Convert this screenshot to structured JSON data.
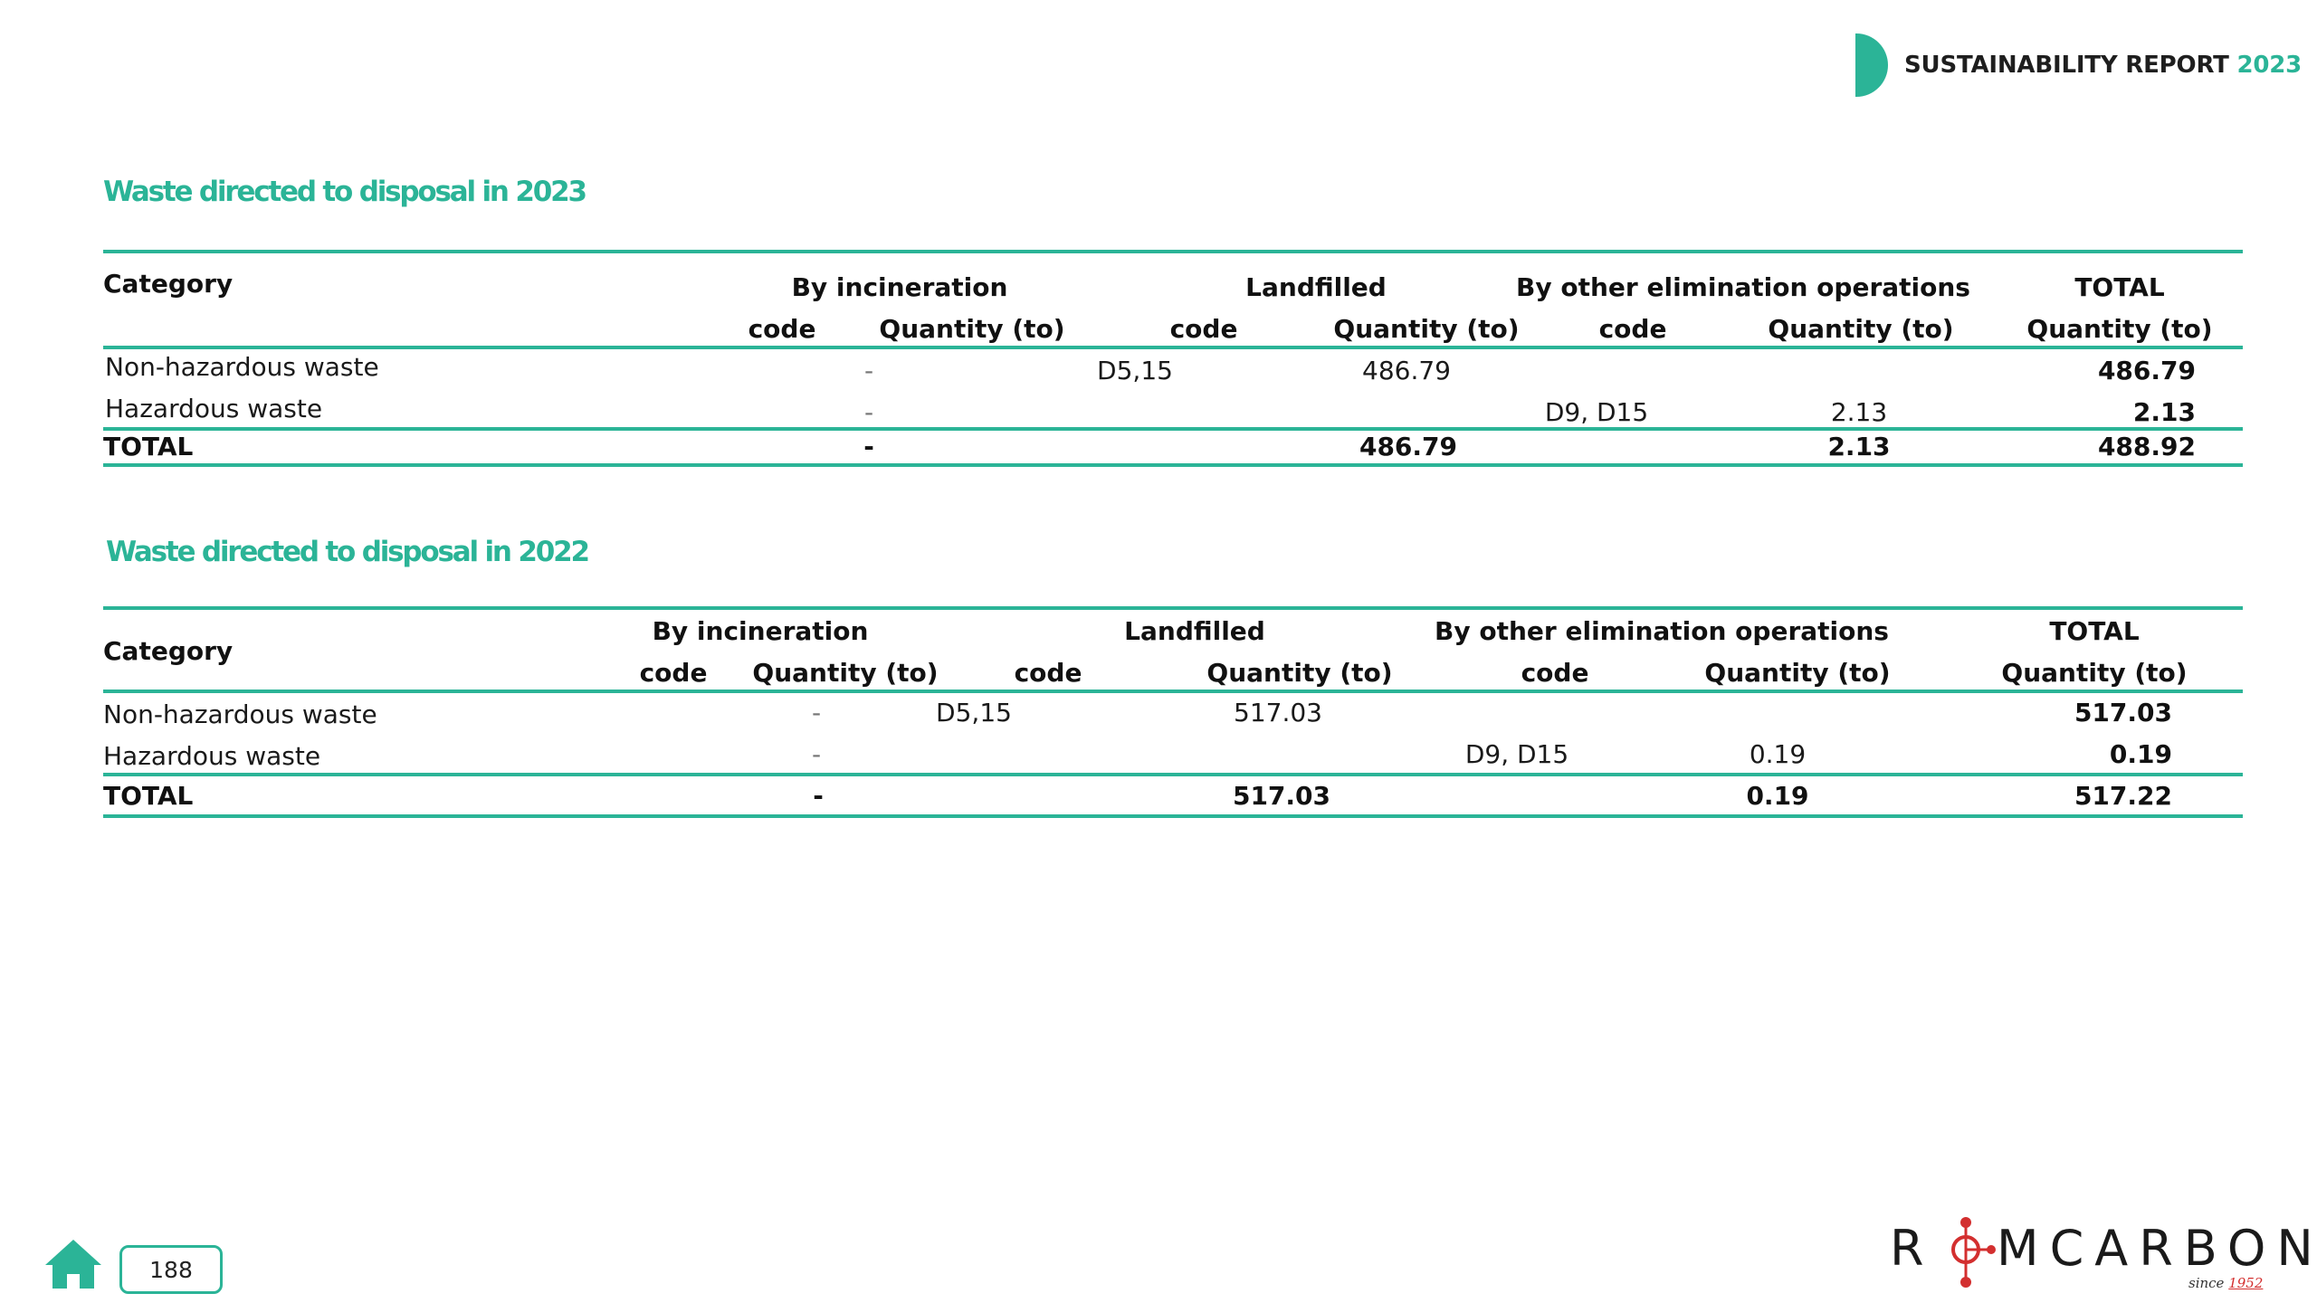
{
  "header": {
    "report_label": "SUSTAINABILITY REPORT",
    "report_year": "2023",
    "accent_color": "#2bb497"
  },
  "sections": [
    {
      "title": "Waste directed to disposal  in 2023",
      "table": {
        "col_category": "Category",
        "group_incineration": "By incineration",
        "group_landfilled": "Landfilled",
        "group_other": "By other elimination operations",
        "group_total": "TOTAL",
        "sub_code": "code",
        "sub_quantity": "Quantity (to)",
        "rows": [
          {
            "category": "Non-hazardous waste",
            "inc_qty": "-",
            "land_code": "D5,15",
            "land_qty": "486.79",
            "other_code": "",
            "other_qty": "",
            "total": "486.79"
          },
          {
            "category": "Hazardous waste",
            "inc_qty": "-",
            "land_code": "",
            "land_qty": "",
            "other_code": "D9, D15",
            "other_qty": "2.13",
            "total": "2.13"
          }
        ],
        "total_row": {
          "label": "TOTAL",
          "inc_qty": "-",
          "land_qty": "486.79",
          "other_qty": "2.13",
          "total": "488.92"
        }
      }
    },
    {
      "title": "Waste directed to disposal  in 2022",
      "table": {
        "col_category": "Category",
        "group_incineration": "By incineration",
        "group_landfilled": "Landfilled",
        "group_other": "By other elimination operations",
        "group_total": "TOTAL",
        "sub_code": "code",
        "sub_quantity": "Quantity (to)",
        "rows": [
          {
            "category": "Non-hazardous waste",
            "inc_qty": "-",
            "land_code": "D5,15",
            "land_qty": "517.03",
            "other_code": "",
            "other_qty": "",
            "total": "517.03"
          },
          {
            "category": "Hazardous waste",
            "inc_qty": "-",
            "land_code": "",
            "land_qty": "",
            "other_code": "D9, D15",
            "other_qty": "0.19",
            "total": "0.19"
          }
        ],
        "total_row": {
          "label": "TOTAL",
          "inc_qty": "-",
          "land_qty": "517.03",
          "other_qty": "0.19",
          "total": "517.22"
        }
      }
    }
  ],
  "footer": {
    "home_icon": "home-icon",
    "page_number": "188",
    "logo": {
      "text_left": "R",
      "text_right": "MCARBON",
      "since_prefix": "since",
      "since_year": "1952",
      "logo_red": "#d32f2f"
    }
  }
}
